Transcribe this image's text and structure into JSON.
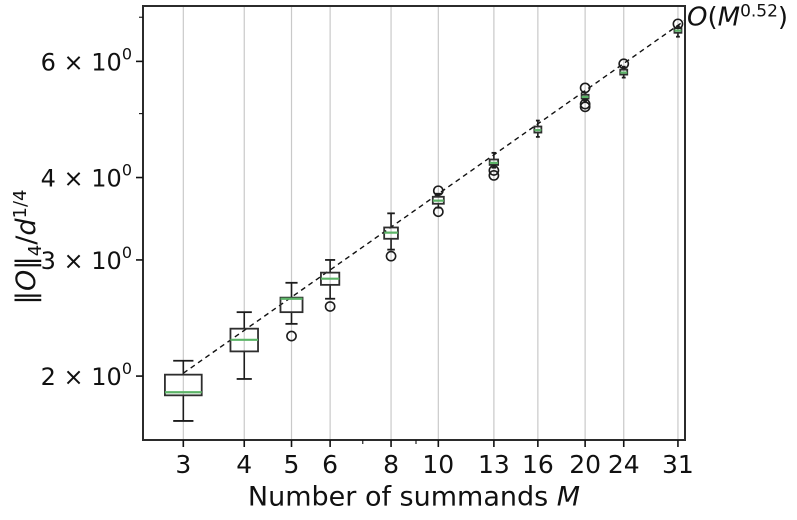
{
  "figure": {
    "background": "#ffffff",
    "annotation": {
      "O": "O",
      "open": "(",
      "M": "M",
      "exponent": "0.52",
      "close": ")"
    },
    "x_axis": {
      "label": {
        "prefix": "Number of summands ",
        "symbol": "M"
      },
      "tick_labels": [
        "3",
        "4",
        "5",
        "6",
        "8",
        "10",
        "13",
        "16",
        "20",
        "24",
        "31"
      ]
    },
    "y_axis": {
      "label": {
        "bar1": "‖",
        "O": "O",
        "bar2": "‖",
        "sub": "4",
        "slash": "/",
        "d": "d",
        "sup": "1/4"
      },
      "tick_labels": [
        "2 × 10⁰",
        "3 × 10⁰",
        "4 × 10⁰",
        "6 × 10⁰"
      ]
    }
  },
  "chart_data": {
    "type": "boxplot",
    "title": "",
    "xlabel": "Number of summands M",
    "ylabel": "||O||_4 / d^{1/4}",
    "x_scale": "log",
    "y_scale": "log",
    "xlim": [
      2.48,
      32.05
    ],
    "ylim": [
      1.6,
      7.28
    ],
    "grid": "vertical-only",
    "x_major_ticks": [
      3,
      4,
      5,
      6,
      8,
      10,
      13,
      16,
      20,
      24,
      31
    ],
    "x_minor_ticks": [
      7,
      9
    ],
    "y_major_ticks": [
      2,
      3,
      4,
      6
    ],
    "y_minor_ticks": [
      5,
      7
    ],
    "trend_line": {
      "label": "O(M^0.52)",
      "coefficient": 1.141,
      "exponent": 0.52,
      "x_range": [
        3,
        32.05
      ],
      "style": "dashed"
    },
    "boxes": [
      {
        "x": 3,
        "whislo": 1.71,
        "q1": 1.87,
        "med": 1.89,
        "q3": 2.01,
        "whishi": 2.11,
        "fliers": []
      },
      {
        "x": 4,
        "whislo": 1.98,
        "q1": 2.18,
        "med": 2.27,
        "q3": 2.36,
        "whishi": 2.5,
        "fliers": []
      },
      {
        "x": 5,
        "whislo": 2.4,
        "q1": 2.5,
        "med": 2.62,
        "q3": 2.63,
        "whishi": 2.77,
        "fliers": [
          2.3
        ]
      },
      {
        "x": 6,
        "whislo": 2.62,
        "q1": 2.75,
        "med": 2.81,
        "q3": 2.87,
        "whishi": 3.0,
        "fliers": [
          2.55
        ]
      },
      {
        "x": 8,
        "whislo": 3.11,
        "q1": 3.23,
        "med": 3.3,
        "q3": 3.36,
        "whishi": 3.53,
        "fliers": [
          3.04
        ]
      },
      {
        "x": 10,
        "whislo": 3.6,
        "q1": 3.65,
        "med": 3.69,
        "q3": 3.74,
        "whishi": 3.78,
        "fliers": [
          3.82,
          3.55
        ]
      },
      {
        "x": 13,
        "whislo": 4.14,
        "q1": 4.18,
        "med": 4.21,
        "q3": 4.26,
        "whishi": 4.36,
        "fliers": [
          4.1,
          4.03
        ]
      },
      {
        "x": 16,
        "whislo": 4.61,
        "q1": 4.68,
        "med": 4.72,
        "q3": 4.78,
        "whishi": 4.88,
        "fliers": []
      },
      {
        "x": 20,
        "whislo": 5.23,
        "q1": 5.27,
        "med": 5.3,
        "q3": 5.34,
        "whishi": 5.38,
        "fliers": [
          5.47,
          5.17,
          5.12
        ]
      },
      {
        "x": 24,
        "whislo": 5.67,
        "q1": 5.73,
        "med": 5.77,
        "q3": 5.83,
        "whishi": 5.89,
        "fliers": [
          5.95
        ]
      },
      {
        "x": 31,
        "whislo": 6.54,
        "q1": 6.63,
        "med": 6.68,
        "q3": 6.74,
        "whishi": 6.78,
        "fliers": [
          6.84
        ]
      }
    ],
    "colors": {
      "box_edge": "#2e2e2e",
      "median": "#5cb467",
      "whisker": "#1c1c1c",
      "flier_edge": "#1c1c1c",
      "grid": "#c9c9c9",
      "trend": "#111111",
      "spine": "#2b2b2b"
    }
  }
}
